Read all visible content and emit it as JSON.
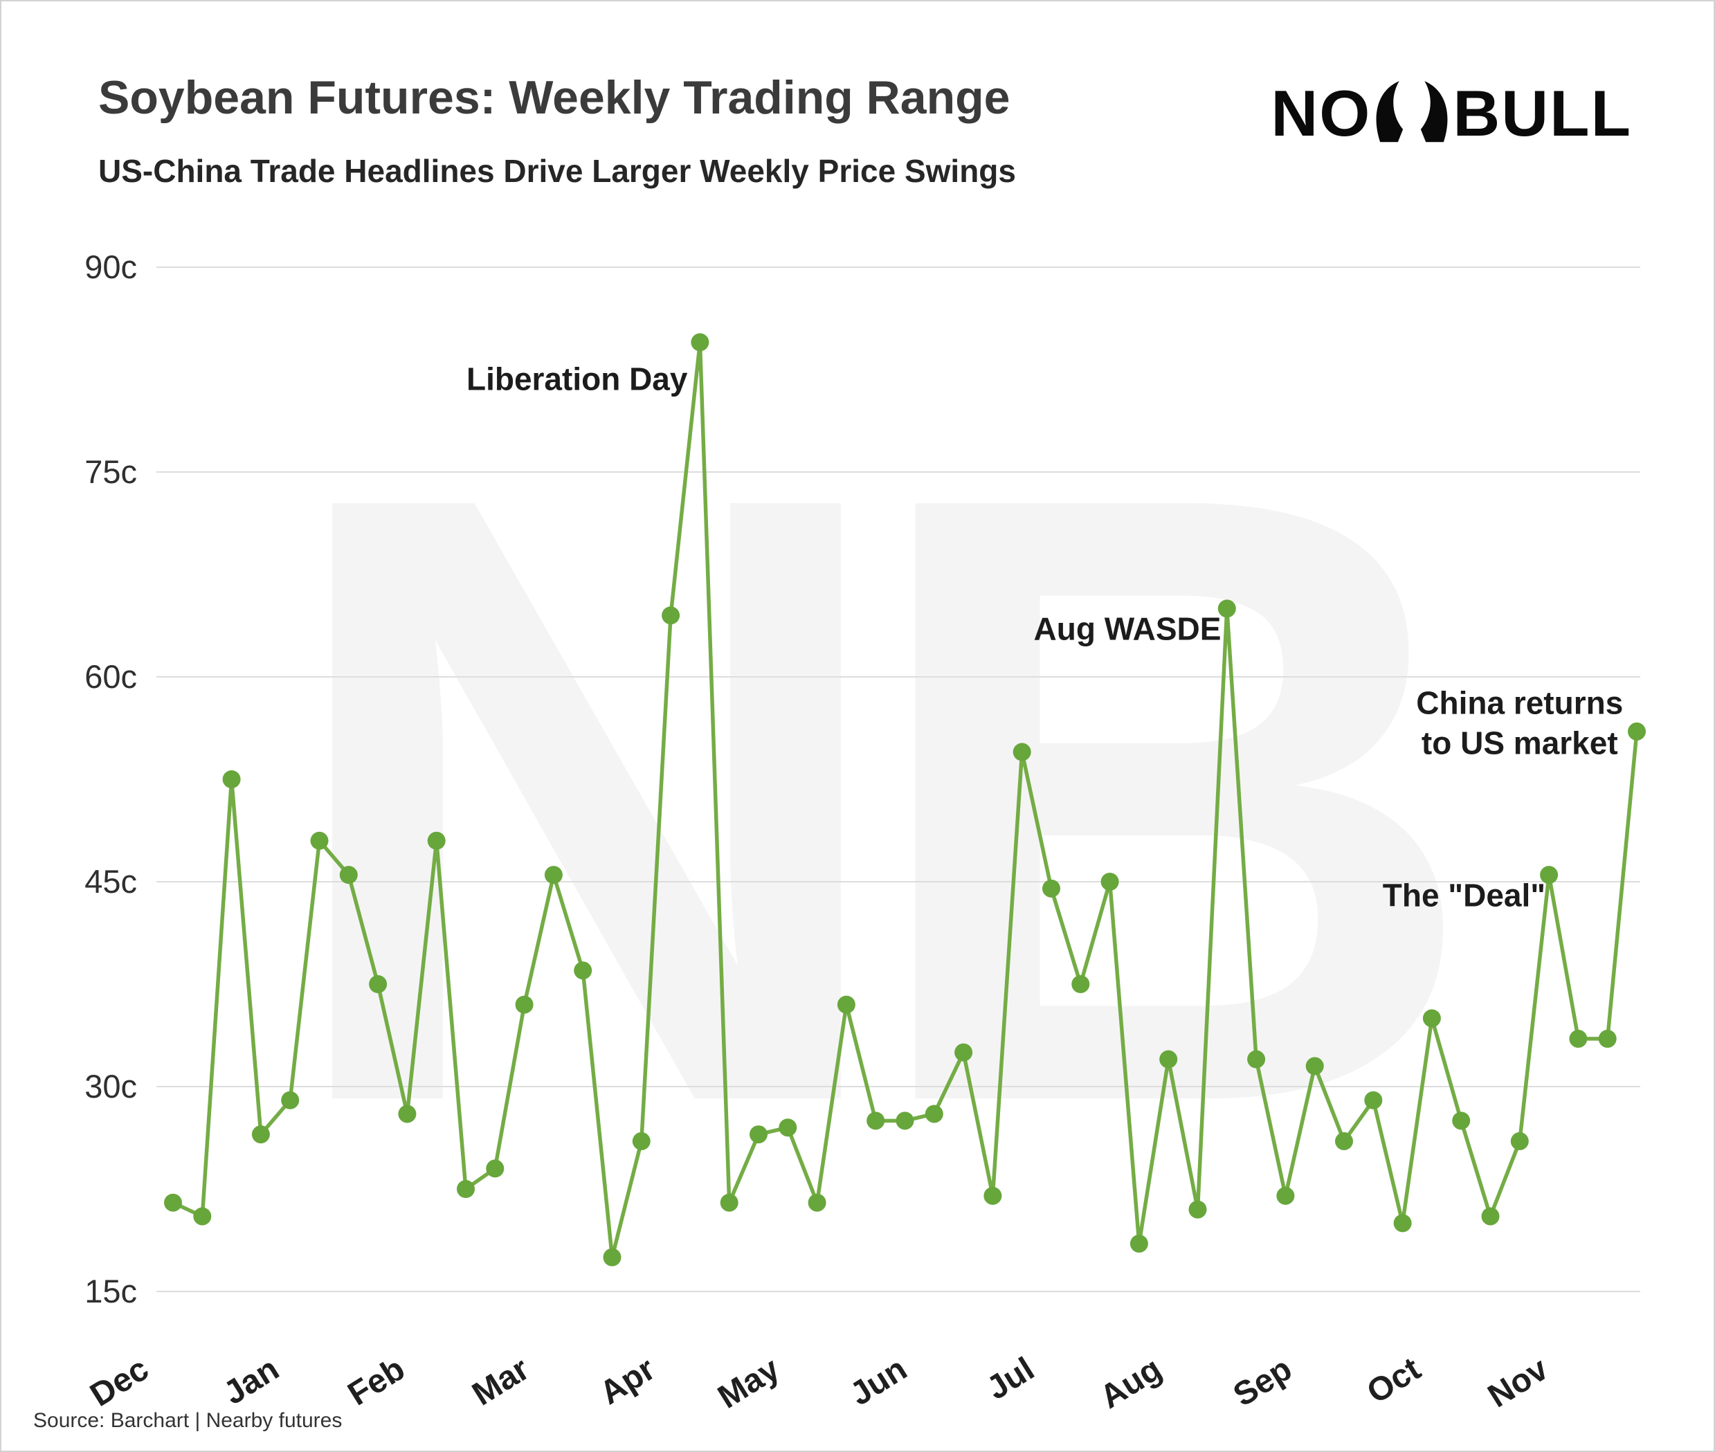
{
  "logo": {
    "left": "NO",
    "right": "BULL"
  },
  "watermark": "NB",
  "footer": {
    "source": "Source: Barchart | Nearby futures"
  },
  "chart_data": {
    "type": "line",
    "title": "Soybean Futures: Weekly Trading Range",
    "subtitle": "US-China Trade Headlines Drive Larger Weekly Price Swings",
    "series_name": "Weekly trading range (cents)",
    "y_unit": "cents",
    "xlabel": "",
    "ylabel": "",
    "grid": true,
    "legend": false,
    "y_ticks": [
      15,
      30,
      45,
      60,
      75,
      90
    ],
    "y_tick_suffix": "c",
    "ylim": [
      15,
      90
    ],
    "x_months": [
      "Dec",
      "Jan",
      "Feb",
      "Mar",
      "Apr",
      "May",
      "Jun",
      "Jul",
      "Aug",
      "Sep",
      "Oct",
      "Nov"
    ],
    "month_tick_weeks": [
      -0.75,
      3.7,
      8.0,
      12.25,
      16.55,
      20.8,
      25.15,
      29.5,
      33.85,
      38.3,
      42.7,
      47.05
    ],
    "values": [
      21.5,
      20.5,
      52.5,
      26.5,
      29,
      48,
      45.5,
      37.5,
      28,
      48,
      22.5,
      24,
      36,
      45.5,
      38.5,
      17.5,
      26,
      64.5,
      84.5,
      21.5,
      26.5,
      27,
      21.5,
      36,
      27.5,
      27.5,
      28,
      32.5,
      22,
      54.5,
      44.5,
      37.5,
      45,
      18.5,
      32,
      21,
      65,
      32,
      22,
      31.5,
      26,
      29,
      20,
      35,
      27.5,
      20.5,
      26,
      45.5,
      33.5,
      33.5,
      56
    ],
    "colors": {
      "line": "#74AC45",
      "marker": "#67A63B",
      "grid": "#dddddd",
      "text": "#2f2f2f",
      "annotation": "#1c1c1c"
    },
    "annotations": [
      {
        "lines": [
          "Liberation Day"
        ],
        "week": 13.8,
        "value": 81
      },
      {
        "lines": [
          "Aug WASDE"
        ],
        "week": 32.6,
        "value": 62.7
      },
      {
        "lines": [
          "China returns",
          "to US market"
        ],
        "week": 46.0,
        "value": 57.3
      },
      {
        "lines": [
          "The \"Deal\""
        ],
        "week": 44.1,
        "value": 43.2
      }
    ]
  }
}
